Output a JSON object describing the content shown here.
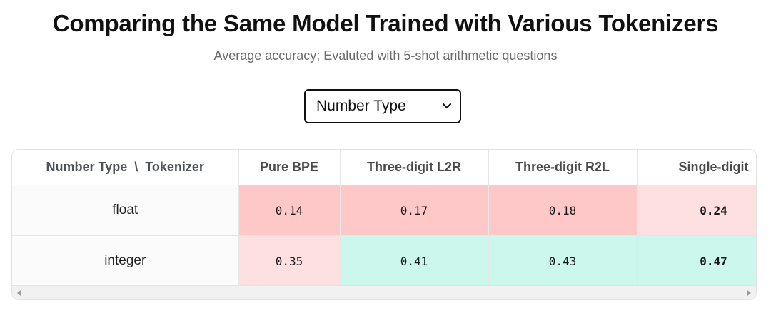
{
  "title": "Comparing the Same Model Trained with Various Tokenizers",
  "subtitle": "Average accuracy; Evaluted with 5-shot arithmetic questions",
  "selector": {
    "selected": "Number Type",
    "icon": "chevron-down-icon"
  },
  "table": {
    "corner_header": "Number Type  \\  Tokenizer",
    "columns": [
      "Pure BPE",
      "Three-digit L2R",
      "Three-digit R2L",
      "Single-digit"
    ],
    "rows": [
      {
        "label": "float",
        "cells": [
          {
            "value": "0.14",
            "color": "#ffc8c8",
            "bold": false
          },
          {
            "value": "0.17",
            "color": "#ffc8c8",
            "bold": false
          },
          {
            "value": "0.18",
            "color": "#ffc8c8",
            "bold": false
          },
          {
            "value": "0.24",
            "color": "#ffe0e0",
            "bold": true
          }
        ]
      },
      {
        "label": "integer",
        "cells": [
          {
            "value": "0.35",
            "color": "#ffe0e0",
            "bold": false
          },
          {
            "value": "0.41",
            "color": "#ccf7ec",
            "bold": false
          },
          {
            "value": "0.43",
            "color": "#ccf7ec",
            "bold": false
          },
          {
            "value": "0.47",
            "color": "#ccf7ec",
            "bold": true
          }
        ]
      }
    ]
  },
  "scrollbar": {
    "left_icon": "scroll-left-arrow-icon",
    "right_icon": "scroll-right-arrow-icon"
  }
}
